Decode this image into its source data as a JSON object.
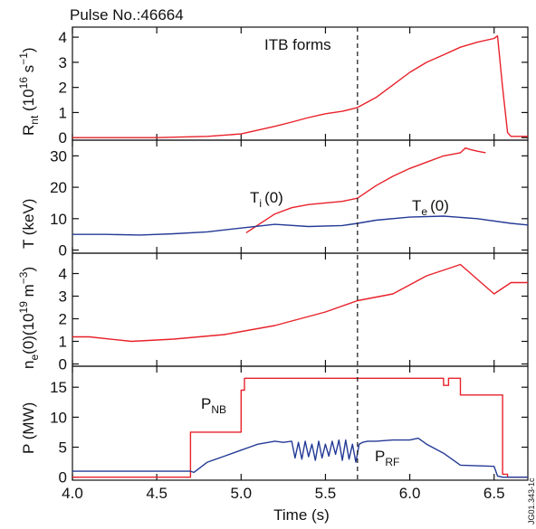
{
  "header": {
    "pulse_label": "Pulse No.:46664"
  },
  "annotations": {
    "itb": "ITB forms",
    "ti_main": "T",
    "ti_sub": "i",
    "ti_suffix": "(0)",
    "te_main": "T",
    "te_sub": "e",
    "te_suffix": "(0)",
    "pnb_main": "P",
    "pnb_sub": "NB",
    "prf_main": "P",
    "prf_sub": "RF",
    "watermark": "JG01.343-1c"
  },
  "axis_labels": {
    "rnt": {
      "main": "R",
      "sub": "nt",
      "mid": " (10",
      "sup1": "16",
      "mid2": " s",
      "sup2": "−1",
      "end": ")"
    },
    "t": {
      "text": "T (keV)"
    },
    "ne": {
      "main": "n",
      "sub": "e",
      "mid": "(0)(10",
      "sup1": "19",
      "mid2": " m",
      "sup2": "−3",
      "end": ")"
    },
    "p": {
      "text": "P (MW)"
    }
  },
  "chart_data": {
    "type": "line",
    "shared_x": {
      "label": "Time (s)",
      "range": [
        4.0,
        6.7
      ],
      "ticks": [
        4.0,
        4.5,
        5.0,
        5.5,
        6.0,
        6.5
      ],
      "tick_labels": [
        "4.0",
        "4.5",
        "5.0",
        "5.5",
        "6.0",
        "6.5"
      ],
      "itb_time": 5.69
    },
    "colors": {
      "red": "#e8212a",
      "blue": "#243a96",
      "axis": "#111111"
    },
    "panels": [
      {
        "id": "rnt",
        "ylim": [
          -0.1,
          4.4
        ],
        "yticks": [
          0,
          1,
          2,
          3,
          4
        ],
        "ytick_labels": [
          "0",
          "1",
          "2",
          "3",
          "4"
        ],
        "series": [
          {
            "color": "red",
            "x": [
              4.0,
              4.5,
              4.8,
              5.0,
              5.2,
              5.3,
              5.4,
              5.5,
              5.6,
              5.69,
              5.8,
              5.9,
              6.0,
              6.1,
              6.2,
              6.3,
              6.4,
              6.5,
              6.52,
              6.55,
              6.58,
              6.6,
              6.7
            ],
            "y": [
              0.0,
              0.0,
              0.05,
              0.15,
              0.45,
              0.62,
              0.8,
              0.95,
              1.05,
              1.2,
              1.6,
              2.1,
              2.6,
              3.0,
              3.3,
              3.6,
              3.8,
              3.95,
              4.05,
              2.0,
              0.2,
              0.05,
              0.05
            ]
          }
        ]
      },
      {
        "id": "t",
        "ylim": [
          -1,
          35
        ],
        "yticks": [
          0,
          10,
          20,
          30
        ],
        "ytick_labels": [
          "0",
          "10",
          "20",
          "30"
        ],
        "series": [
          {
            "name": "T_i(0)",
            "color": "red",
            "x": [
              5.03,
              5.1,
              5.2,
              5.3,
              5.4,
              5.5,
              5.6,
              5.69,
              5.8,
              5.9,
              6.0,
              6.1,
              6.2,
              6.3,
              6.33,
              6.36,
              6.4,
              6.45
            ],
            "y": [
              5.5,
              8,
              11.5,
              13.5,
              14.5,
              15,
              15.5,
              16.5,
              20.5,
              23.5,
              26,
              28,
              30,
              31,
              32.5,
              32,
              31.5,
              31
            ]
          },
          {
            "name": "T_e(0)",
            "color": "blue",
            "x": [
              4.0,
              4.2,
              4.4,
              4.6,
              4.8,
              5.0,
              5.2,
              5.4,
              5.6,
              5.69,
              5.8,
              6.0,
              6.2,
              6.4,
              6.6,
              6.7
            ],
            "y": [
              5,
              5,
              4.8,
              5.2,
              5.8,
              7,
              8.2,
              7.5,
              7.8,
              8.5,
              9.5,
              10.5,
              10.8,
              10,
              8.5,
              8
            ]
          }
        ]
      },
      {
        "id": "ne",
        "ylim": [
          -0.1,
          4.9
        ],
        "yticks": [
          0,
          1,
          2,
          3,
          4
        ],
        "ytick_labels": [
          "0",
          "1",
          "2",
          "3",
          "4"
        ],
        "series": [
          {
            "color": "red",
            "x": [
              4.0,
              4.1,
              4.35,
              4.6,
              4.9,
              5.2,
              5.5,
              5.69,
              5.9,
              6.1,
              6.3,
              6.5,
              6.6,
              6.7
            ],
            "y": [
              1.2,
              1.2,
              1.0,
              1.1,
              1.3,
              1.7,
              2.3,
              2.8,
              3.1,
              3.9,
              4.4,
              3.1,
              3.6,
              3.6
            ]
          }
        ]
      },
      {
        "id": "p",
        "ylim": [
          -0.5,
          18.5
        ],
        "yticks": [
          0,
          5,
          10,
          15
        ],
        "ytick_labels": [
          "0",
          "5",
          "10",
          "15"
        ],
        "series": [
          {
            "name": "P_NB",
            "color": "red",
            "x": [
              4.0,
              4.7,
              4.7,
              5.0,
              5.0,
              5.02,
              5.02,
              6.2,
              6.2,
              6.23,
              6.23,
              6.25,
              6.25,
              6.3,
              6.3,
              6.55,
              6.55,
              6.58,
              6.58,
              6.7
            ],
            "y": [
              0,
              0,
              7.5,
              7.5,
              14.5,
              14.5,
              16.5,
              16.5,
              15.3,
              15.3,
              16.5,
              16.5,
              16.5,
              16.5,
              13.7,
              13.7,
              0.5,
              0.5,
              0,
              0
            ]
          },
          {
            "name": "P_RF",
            "color": "blue",
            "x": [
              4.0,
              4.7,
              4.72,
              4.8,
              4.9,
              5.0,
              5.05,
              5.1,
              5.2,
              5.25,
              5.3,
              5.32,
              5.34,
              5.36,
              5.38,
              5.4,
              5.42,
              5.44,
              5.46,
              5.48,
              5.5,
              5.52,
              5.54,
              5.56,
              5.58,
              5.6,
              5.62,
              5.64,
              5.66,
              5.68,
              5.7,
              5.72,
              5.75,
              5.8,
              5.9,
              6.0,
              6.05,
              6.1,
              6.2,
              6.3,
              6.5,
              6.52,
              6.55,
              6.7
            ],
            "y": [
              1,
              1,
              0.8,
              2.5,
              3.5,
              4.5,
              5.0,
              5.5,
              6.0,
              5.8,
              6.0,
              3.2,
              5.8,
              3.0,
              6.0,
              3.4,
              5.5,
              2.8,
              6.0,
              3.2,
              5.5,
              3.5,
              6.0,
              3.8,
              6.2,
              2.8,
              6.2,
              3.0,
              5.5,
              2.5,
              5.5,
              5.8,
              6.0,
              6.0,
              6.2,
              6.2,
              6.5,
              5.5,
              4.0,
              2.0,
              1.8,
              0.2,
              0.0,
              0.0
            ]
          }
        ]
      }
    ]
  }
}
